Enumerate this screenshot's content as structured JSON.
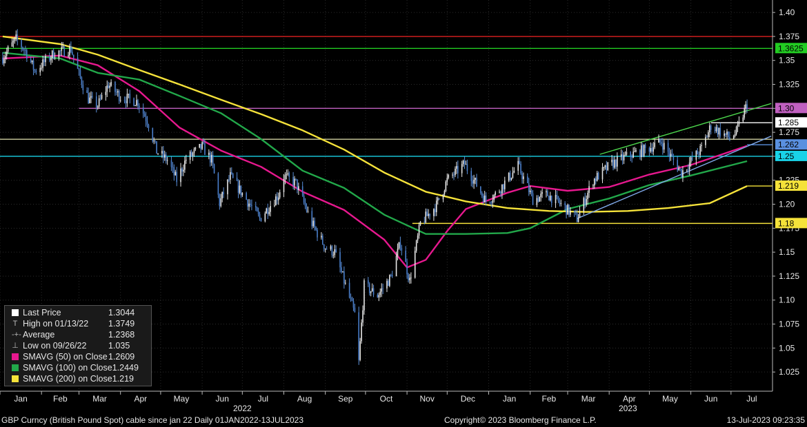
{
  "chart_data": {
    "type": "candlestick",
    "y_ticks": [
      "1.40",
      "1.375",
      "1.35",
      "1.325",
      "1.30",
      "1.275",
      "1.25",
      "1.225",
      "1.20",
      "1.175",
      "1.15",
      "1.125",
      "1.10",
      "1.075",
      "1.05",
      "1.025"
    ],
    "ylim": [
      1.005,
      1.413
    ],
    "x_ticks": [
      "Jan",
      "Feb",
      "Mar",
      "Apr",
      "May",
      "Jun",
      "Jul",
      "Aug",
      "Sep",
      "Oct",
      "Nov",
      "Dec",
      "Jan",
      "Feb",
      "Mar",
      "Apr",
      "May",
      "Jun",
      "Jul"
    ],
    "year_labels": [
      "2022",
      "2023"
    ],
    "price_path": [
      [
        "2022-01-03",
        1.353
      ],
      [
        "2022-01-13",
        1.372
      ],
      [
        "2022-01-20",
        1.36
      ],
      [
        "2022-01-27",
        1.339
      ],
      [
        "2022-02-10",
        1.357
      ],
      [
        "2022-02-23",
        1.362
      ],
      [
        "2022-03-01",
        1.335
      ],
      [
        "2022-03-08",
        1.31
      ],
      [
        "2022-03-15",
        1.303
      ],
      [
        "2022-03-23",
        1.325
      ],
      [
        "2022-04-01",
        1.312
      ],
      [
        "2022-04-14",
        1.307
      ],
      [
        "2022-04-22",
        1.284
      ],
      [
        "2022-04-28",
        1.255
      ],
      [
        "2022-05-06",
        1.246
      ],
      [
        "2022-05-13",
        1.225
      ],
      [
        "2022-05-20",
        1.247
      ],
      [
        "2022-06-01",
        1.26
      ],
      [
        "2022-06-08",
        1.246
      ],
      [
        "2022-06-14",
        1.201
      ],
      [
        "2022-06-22",
        1.229
      ],
      [
        "2022-06-30",
        1.213
      ],
      [
        "2022-07-14",
        1.185
      ],
      [
        "2022-07-28",
        1.21
      ],
      [
        "2022-08-01",
        1.229
      ],
      [
        "2022-08-10",
        1.222
      ],
      [
        "2022-08-22",
        1.18
      ],
      [
        "2022-09-01",
        1.155
      ],
      [
        "2022-09-08",
        1.15
      ],
      [
        "2022-09-23",
        1.085
      ],
      [
        "2022-09-26",
        1.035
      ],
      [
        "2022-09-30",
        1.115
      ],
      [
        "2022-10-10",
        1.105
      ],
      [
        "2022-10-20",
        1.124
      ],
      [
        "2022-10-27",
        1.16
      ],
      [
        "2022-11-03",
        1.12
      ],
      [
        "2022-11-11",
        1.18
      ],
      [
        "2022-11-23",
        1.199
      ],
      [
        "2022-12-01",
        1.225
      ],
      [
        "2022-12-14",
        1.242
      ],
      [
        "2022-12-30",
        1.203
      ],
      [
        "2023-01-06",
        1.21
      ],
      [
        "2023-01-23",
        1.24
      ],
      [
        "2023-02-03",
        1.205
      ],
      [
        "2023-02-14",
        1.21
      ],
      [
        "2023-02-24",
        1.2
      ],
      [
        "2023-03-08",
        1.185
      ],
      [
        "2023-03-20",
        1.225
      ],
      [
        "2023-04-03",
        1.242
      ],
      [
        "2023-04-14",
        1.25
      ],
      [
        "2023-04-28",
        1.257
      ],
      [
        "2023-05-10",
        1.265
      ],
      [
        "2023-05-25",
        1.233
      ],
      [
        "2023-06-09",
        1.258
      ],
      [
        "2023-06-16",
        1.282
      ],
      [
        "2023-06-30",
        1.269
      ],
      [
        "2023-07-05",
        1.275
      ],
      [
        "2023-07-13",
        1.3044
      ]
    ],
    "moving_averages": [
      {
        "name": "SMAVG (50)  on Close",
        "color": "#e6188e",
        "points": [
          [
            "2022-01-03",
            1.352
          ],
          [
            "2022-02-15",
            1.355
          ],
          [
            "2022-03-15",
            1.345
          ],
          [
            "2022-04-15",
            1.318
          ],
          [
            "2022-05-15",
            1.28
          ],
          [
            "2022-06-15",
            1.256
          ],
          [
            "2022-07-15",
            1.239
          ],
          [
            "2022-08-15",
            1.213
          ],
          [
            "2022-09-15",
            1.194
          ],
          [
            "2022-10-15",
            1.163
          ],
          [
            "2022-11-01",
            1.134
          ],
          [
            "2022-11-15",
            1.142
          ],
          [
            "2022-12-01",
            1.172
          ],
          [
            "2022-12-15",
            1.195
          ],
          [
            "2023-01-15",
            1.212
          ],
          [
            "2023-02-01",
            1.219
          ],
          [
            "2023-03-01",
            1.214
          ],
          [
            "2023-04-01",
            1.218
          ],
          [
            "2023-05-01",
            1.231
          ],
          [
            "2023-06-01",
            1.241
          ],
          [
            "2023-07-13",
            1.2609
          ]
        ]
      },
      {
        "name": "SMAVG (100)  on Close",
        "color": "#22a84a",
        "points": [
          [
            "2022-01-03",
            1.358
          ],
          [
            "2022-02-15",
            1.352
          ],
          [
            "2022-03-15",
            1.337
          ],
          [
            "2022-04-15",
            1.33
          ],
          [
            "2022-05-15",
            1.313
          ],
          [
            "2022-06-15",
            1.295
          ],
          [
            "2022-07-15",
            1.268
          ],
          [
            "2022-08-15",
            1.235
          ],
          [
            "2022-09-15",
            1.217
          ],
          [
            "2022-10-15",
            1.189
          ],
          [
            "2022-11-15",
            1.169
          ],
          [
            "2022-12-15",
            1.169
          ],
          [
            "2023-01-15",
            1.17
          ],
          [
            "2023-02-01",
            1.175
          ],
          [
            "2023-03-01",
            1.195
          ],
          [
            "2023-04-01",
            1.206
          ],
          [
            "2023-05-01",
            1.22
          ],
          [
            "2023-06-01",
            1.23
          ],
          [
            "2023-07-13",
            1.2449
          ]
        ]
      },
      {
        "name": "SMAVG (200)  on Close",
        "color": "#f5e23a",
        "points": [
          [
            "2022-01-03",
            1.375
          ],
          [
            "2022-02-15",
            1.367
          ],
          [
            "2022-03-15",
            1.356
          ],
          [
            "2022-04-15",
            1.34
          ],
          [
            "2022-05-15",
            1.325
          ],
          [
            "2022-06-15",
            1.309
          ],
          [
            "2022-07-15",
            1.294
          ],
          [
            "2022-08-15",
            1.277
          ],
          [
            "2022-09-15",
            1.257
          ],
          [
            "2022-10-15",
            1.233
          ],
          [
            "2022-11-15",
            1.213
          ],
          [
            "2022-12-15",
            1.203
          ],
          [
            "2023-01-15",
            1.196
          ],
          [
            "2023-02-15",
            1.193
          ],
          [
            "2023-03-15",
            1.192
          ],
          [
            "2023-04-15",
            1.193
          ],
          [
            "2023-05-15",
            1.196
          ],
          [
            "2023-06-15",
            1.201
          ],
          [
            "2023-07-13",
            1.219
          ]
        ]
      }
    ],
    "horizontal_levels": [
      {
        "value": 1.375,
        "color": "#e02020",
        "start": "2022-01-01",
        "label": ""
      },
      {
        "value": 1.3625,
        "color": "#22cc22",
        "start": "2022-01-01",
        "label": "1.3625"
      },
      {
        "value": 1.3,
        "color": "#c060c0",
        "start": "2022-03-01",
        "label": "1.30"
      },
      {
        "value": 1.285,
        "color": "#ffffff",
        "start": "2023-06-16",
        "label": "1.285"
      },
      {
        "value": 1.2678,
        "color": "#cfcfa0",
        "start": "2022-01-01",
        "label": ""
      },
      {
        "value": 1.262,
        "color": "#5a90e0",
        "start": "2023-07-13",
        "label": "1.262"
      },
      {
        "value": 1.25,
        "color": "#19d3e8",
        "start": "2022-01-01",
        "label": "1.25"
      },
      {
        "value": 1.219,
        "color": "#f5e23a",
        "start": "2023-07-13",
        "label": "1.219"
      },
      {
        "value": 1.18,
        "color": "#f5e23a",
        "start": "2022-11-05",
        "label": "1.18"
      }
    ],
    "trend_lines": [
      {
        "color": "#7fa8e8",
        "from": [
          "2023-03-08",
          1.185
        ],
        "to": [
          "2023-07-31",
          1.271
        ]
      },
      {
        "color": "#4cd64c",
        "from": [
          "2023-03-25",
          1.252
        ],
        "to": [
          "2023-07-31",
          1.305
        ]
      }
    ],
    "legend": [
      {
        "label": "Last Price",
        "value": "1.3044",
        "swatch": "#ffffff",
        "glyph": ""
      },
      {
        "label": "High on 01/13/22",
        "value": "1.3749",
        "swatch": "",
        "glyph": "T"
      },
      {
        "label": "Average",
        "value": "1.2368",
        "swatch": "",
        "glyph": "-+-"
      },
      {
        "label": "Low on 09/26/22",
        "value": "1.035",
        "swatch": "",
        "glyph": "⊥"
      },
      {
        "label": "SMAVG (50)  on Close",
        "value": "1.2609",
        "swatch": "#e6188e",
        "glyph": ""
      },
      {
        "label": "SMAVG (100)  on Close",
        "value": "1.2449",
        "swatch": "#22a84a",
        "glyph": ""
      },
      {
        "label": "SMAVG (200)  on Close",
        "value": "1.219",
        "swatch": "#f5e23a",
        "glyph": ""
      }
    ]
  },
  "footer": {
    "left": "GBP Curncy (British Pound Spot) cable since jan 22  Daily 01JAN2022-13JUL2023",
    "center": "Copyright© 2023 Bloomberg Finance L.P.",
    "right": "13-Jul-2023 09:23:35"
  }
}
